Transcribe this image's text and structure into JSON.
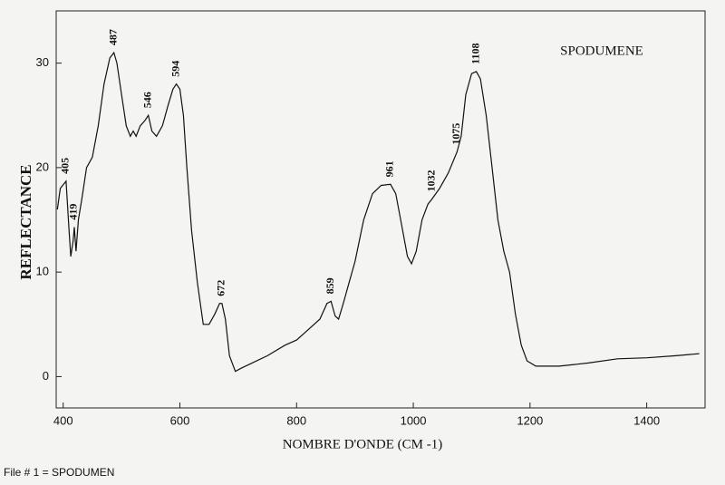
{
  "chart_data": {
    "type": "line",
    "title": "SPODUMENE",
    "x_label": "NOMBRE D'ONDE (CM -1)",
    "y_label": "REFLECTANCE",
    "xlim": [
      388,
      1500
    ],
    "ylim": [
      -3,
      35
    ],
    "xticks": [
      400,
      600,
      800,
      1000,
      1200,
      1400
    ],
    "yticks": [
      0,
      10,
      20,
      30
    ],
    "series": [
      {
        "color": "#111111",
        "x": [
          390,
          395,
          405,
          410,
          413,
          417,
          419,
          422,
          426,
          432,
          440,
          450,
          460,
          470,
          480,
          487,
          492,
          500,
          508,
          515,
          520,
          525,
          532,
          540,
          546,
          552,
          560,
          570,
          580,
          588,
          594,
          600,
          606,
          612,
          620,
          630,
          640,
          650,
          660,
          668,
          672,
          678,
          685,
          695,
          705,
          720,
          750,
          780,
          800,
          820,
          840,
          852,
          859,
          866,
          872,
          880,
          890,
          900,
          915,
          930,
          945,
          961,
          970,
          980,
          990,
          997,
          1005,
          1015,
          1025,
          1032,
          1045,
          1060,
          1075,
          1082,
          1090,
          1100,
          1108,
          1115,
          1125,
          1135,
          1145,
          1155,
          1165,
          1175,
          1185,
          1195,
          1210,
          1250,
          1300,
          1350,
          1400,
          1450,
          1490
        ],
        "values": [
          16,
          18,
          18.7,
          14,
          11.5,
          13,
          14.3,
          12,
          15,
          17,
          20,
          21,
          24,
          28,
          30.5,
          31,
          30,
          27,
          24,
          23,
          23.5,
          23,
          24,
          24.5,
          25,
          23.5,
          23,
          24,
          26,
          27.5,
          28,
          27.5,
          25,
          20,
          14,
          9,
          5,
          5,
          6,
          7,
          7,
          5.5,
          2,
          0.5,
          0.8,
          1.2,
          2,
          3,
          3.5,
          4.5,
          5.5,
          7,
          7.2,
          5.8,
          5.5,
          7,
          9,
          11,
          15,
          17.5,
          18.3,
          18.4,
          17.5,
          14.5,
          11.5,
          10.8,
          12,
          15,
          16.5,
          17,
          18,
          19.5,
          21.5,
          23,
          27,
          29,
          29.2,
          28.5,
          25,
          20,
          15,
          12,
          10,
          6,
          3,
          1.5,
          1,
          1,
          1.3,
          1.7,
          1.8,
          2,
          2.2
        ]
      }
    ],
    "peaks": [
      405,
      419,
      487,
      546,
      594,
      672,
      859,
      961,
      1032,
      1075,
      1108
    ]
  },
  "footer": "File # 1 = SPODUMEN"
}
